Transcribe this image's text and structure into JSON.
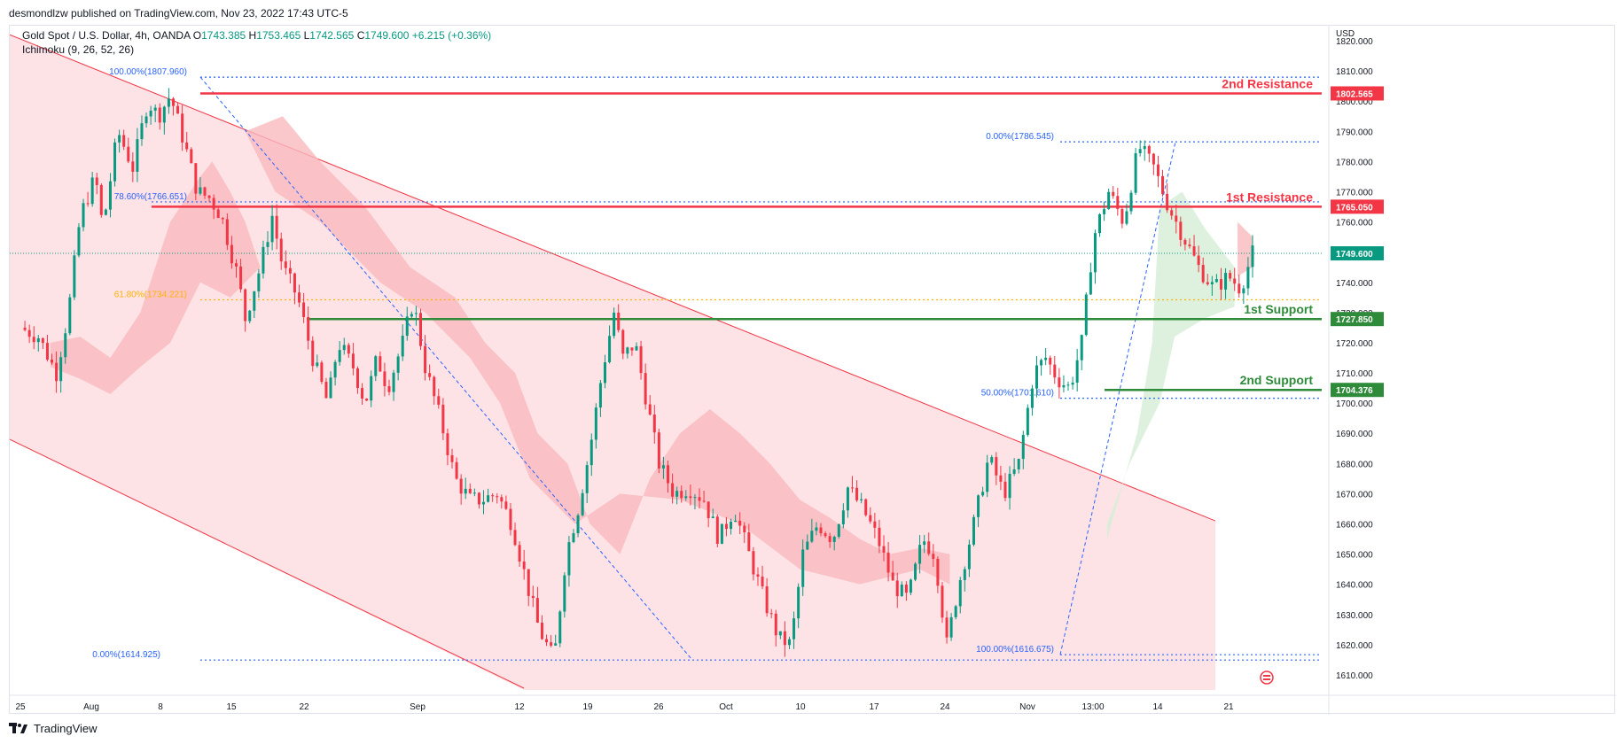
{
  "header": {
    "published_text": "desmondlzw published on TradingView.com, Nov 23, 2022 17:43 UTC-5"
  },
  "legend": {
    "symbol": "Gold Spot / U.S. Dollar, 4h, OANDA",
    "open_label": "O",
    "open": "1743.385",
    "high_label": "H",
    "high": "1753.465",
    "low_label": "L",
    "low": "1742.565",
    "close_label": "C",
    "close": "1749.600",
    "change": "+6.215 (+0.36%)",
    "indicator": "Ichimoku (9, 26, 52, 26)"
  },
  "axis": {
    "currency": "USD",
    "y_ticks": [
      "1820.000",
      "1810.000",
      "1800.000",
      "1790.000",
      "1780.000",
      "1770.000",
      "1760.000",
      "1750.000",
      "1740.000",
      "1730.000",
      "1720.000",
      "1710.000",
      "1700.000",
      "1690.000",
      "1680.000",
      "1670.000",
      "1660.000",
      "1650.000",
      "1640.000",
      "1630.000",
      "1620.000",
      "1610.000"
    ],
    "x_ticks": [
      "25",
      "Aug",
      "8",
      "15",
      "22",
      "Sep",
      "12",
      "19",
      "26",
      "Oct",
      "10",
      "17",
      "24",
      "Nov",
      "13:00",
      "14",
      "21"
    ]
  },
  "colors": {
    "bull": "#089981",
    "bear": "#f23645",
    "resistance": "#f23645",
    "support": "#2e8b3a",
    "fib": "#2962ff",
    "fib_gold": "#ffb300",
    "channel_fill": "#fde3e6",
    "cloud_red": "#f9b9be",
    "cloud_green": "#d5eed6",
    "current_price_bg": "#089981"
  },
  "chart_data": {
    "type": "candlestick",
    "title": "Gold Spot / U.S. Dollar, 4h, OANDA",
    "ylim": [
      1605,
      1825
    ],
    "current_price": 1749.6,
    "levels": [
      {
        "label": "2nd Resistance",
        "value": 1802.565,
        "tag": "1802.565",
        "kind": "resistance"
      },
      {
        "label": "1st Resistance",
        "value": 1765.05,
        "tag": "1765.050",
        "kind": "resistance"
      },
      {
        "label": "1st Support",
        "value": 1727.85,
        "tag": "1727.850",
        "kind": "support"
      },
      {
        "label": "2nd Support",
        "value": 1704.376,
        "tag": "1704.376",
        "kind": "support"
      }
    ],
    "current_tag": "1749.600",
    "fib_labels": [
      {
        "text": "100.00%(1807.960)",
        "value": 1807.96
      },
      {
        "text": "78.60%(1766.651)",
        "value": 1766.651
      },
      {
        "text": "61.80%(1734.221)",
        "value": 1734.221
      },
      {
        "text": "0.00%(1614.925)",
        "value": 1614.925
      },
      {
        "text": "0.00%(1786.545)",
        "value": 1786.545
      },
      {
        "text": "50.00%(1701.610)",
        "value": 1701.61
      },
      {
        "text": "100.00%(1616.675)",
        "value": 1616.675
      }
    ],
    "price_path": [
      [
        0,
        1725
      ],
      [
        12,
        1722
      ],
      [
        24,
        1710
      ],
      [
        32,
        1730
      ],
      [
        40,
        1762
      ],
      [
        50,
        1775
      ],
      [
        55,
        1758
      ],
      [
        65,
        1790
      ],
      [
        75,
        1778
      ],
      [
        85,
        1800
      ],
      [
        92,
        1795
      ],
      [
        100,
        1802
      ],
      [
        110,
        1785
      ],
      [
        118,
        1770
      ],
      [
        126,
        1768
      ],
      [
        134,
        1762
      ],
      [
        145,
        1742
      ],
      [
        150,
        1728
      ],
      [
        160,
        1745
      ],
      [
        168,
        1762
      ],
      [
        175,
        1745
      ],
      [
        185,
        1735
      ],
      [
        195,
        1715
      ],
      [
        205,
        1700
      ],
      [
        212,
        1720
      ],
      [
        222,
        1712
      ],
      [
        230,
        1700
      ],
      [
        238,
        1715
      ],
      [
        245,
        1705
      ],
      [
        255,
        1720
      ],
      [
        262,
        1734
      ],
      [
        270,
        1712
      ],
      [
        280,
        1695
      ],
      [
        290,
        1675
      ],
      [
        300,
        1668
      ],
      [
        308,
        1668
      ],
      [
        318,
        1670
      ],
      [
        328,
        1660
      ],
      [
        338,
        1640
      ],
      [
        346,
        1625
      ],
      [
        356,
        1615
      ],
      [
        364,
        1650
      ],
      [
        372,
        1665
      ],
      [
        380,
        1685
      ],
      [
        388,
        1710
      ],
      [
        396,
        1730
      ],
      [
        402,
        1715
      ],
      [
        410,
        1720
      ],
      [
        418,
        1700
      ],
      [
        426,
        1680
      ],
      [
        436,
        1670
      ],
      [
        446,
        1672
      ],
      [
        456,
        1668
      ],
      [
        466,
        1655
      ],
      [
        476,
        1665
      ],
      [
        486,
        1650
      ],
      [
        496,
        1635
      ],
      [
        506,
        1622
      ],
      [
        514,
        1620
      ],
      [
        522,
        1650
      ],
      [
        532,
        1660
      ],
      [
        542,
        1655
      ],
      [
        552,
        1672
      ],
      [
        562,
        1665
      ],
      [
        572,
        1655
      ],
      [
        582,
        1640
      ],
      [
        592,
        1635
      ],
      [
        602,
        1655
      ],
      [
        610,
        1650
      ],
      [
        618,
        1620
      ],
      [
        626,
        1640
      ],
      [
        636,
        1660
      ],
      [
        646,
        1682
      ],
      [
        656,
        1670
      ],
      [
        666,
        1680
      ],
      [
        676,
        1710
      ],
      [
        684,
        1715
      ],
      [
        692,
        1708
      ],
      [
        700,
        1705
      ],
      [
        708,
        1720
      ],
      [
        716,
        1755
      ],
      [
        726,
        1770
      ],
      [
        736,
        1760
      ],
      [
        746,
        1785
      ],
      [
        756,
        1778
      ],
      [
        766,
        1765
      ],
      [
        776,
        1755
      ],
      [
        786,
        1745
      ],
      [
        796,
        1738
      ],
      [
        806,
        1742
      ],
      [
        814,
        1738
      ],
      [
        822,
        1749.6
      ]
    ],
    "plot_note": "4h candles, Jul 25 – Nov 23, 2022"
  }
}
